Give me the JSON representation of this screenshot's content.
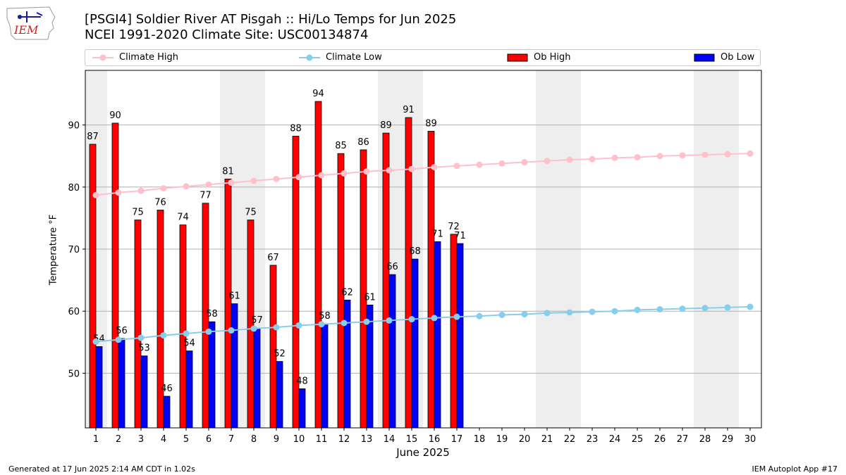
{
  "header": {
    "title_line1": "[PSGI4] Soldier River  AT Pisgah :: Hi/Lo Temps for Jun 2025",
    "title_line2": "NCEI 1991-2020 Climate Site: USC00134874"
  },
  "logo": {
    "text": "IEM"
  },
  "legend": {
    "items": [
      {
        "label": "Climate High",
        "kind": "line",
        "color": "#ffc0cb"
      },
      {
        "label": "Climate Low",
        "kind": "line",
        "color": "#87ceeb"
      },
      {
        "label": "Ob High",
        "kind": "bar",
        "color": "#ff0000"
      },
      {
        "label": "Ob Low",
        "kind": "bar",
        "color": "#0000ff"
      }
    ]
  },
  "footer": {
    "left": "Generated at 17 Jun 2025 2:14 AM CDT in 1.02s",
    "right": "IEM Autoplot App #17"
  },
  "chart_data": {
    "type": "bar",
    "xlabel": "June 2025",
    "ylabel": "Temperature $^\\circ$F",
    "ylabel_display": "Temperature °F",
    "ylim": [
      41.2,
      98.8
    ],
    "yticks": [
      50,
      60,
      70,
      80,
      90
    ],
    "grid": "horizontal",
    "legend_position": "top",
    "weekend_shading_days": [
      1,
      7,
      8,
      14,
      15,
      21,
      22,
      28,
      29
    ],
    "days": [
      1,
      2,
      3,
      4,
      5,
      6,
      7,
      8,
      9,
      10,
      11,
      12,
      13,
      14,
      15,
      16,
      17,
      18,
      19,
      20,
      21,
      22,
      23,
      24,
      25,
      26,
      27,
      28,
      29,
      30
    ],
    "ob_high": [
      86.9,
      90.3,
      74.7,
      76.3,
      73.9,
      77.4,
      81.3,
      74.7,
      67.4,
      88.2,
      93.8,
      85.4,
      86.0,
      88.7,
      91.2,
      89.0,
      72.4
    ],
    "ob_high_labels": [
      "87",
      "90",
      "75",
      "76",
      "74",
      "77",
      "81",
      "75",
      "67",
      "88",
      "94",
      "85",
      "86",
      "89",
      "91",
      "89",
      "72"
    ],
    "ob_low": [
      54.3,
      55.6,
      52.8,
      46.3,
      53.6,
      58.3,
      61.2,
      57.3,
      51.9,
      47.5,
      58.0,
      61.8,
      61.0,
      65.9,
      68.4,
      71.2,
      70.9
    ],
    "ob_low_labels": [
      "54",
      "56",
      "53",
      "46",
      "54",
      "58",
      "61",
      "57",
      "52",
      "48",
      "58",
      "62",
      "61",
      "66",
      "68",
      "71",
      "71"
    ],
    "climate_high": [
      78.7,
      79.1,
      79.4,
      79.8,
      80.1,
      80.4,
      80.7,
      81.0,
      81.3,
      81.6,
      81.9,
      82.2,
      82.5,
      82.7,
      82.9,
      83.2,
      83.4,
      83.6,
      83.8,
      84.0,
      84.2,
      84.4,
      84.5,
      84.7,
      84.8,
      85.0,
      85.1,
      85.2,
      85.3,
      85.4
    ],
    "climate_low": [
      55.1,
      55.4,
      55.7,
      56.1,
      56.4,
      56.7,
      56.9,
      57.2,
      57.4,
      57.7,
      57.9,
      58.1,
      58.3,
      58.5,
      58.7,
      58.9,
      59.1,
      59.2,
      59.4,
      59.5,
      59.7,
      59.8,
      59.9,
      60.0,
      60.2,
      60.3,
      60.4,
      60.5,
      60.6,
      60.7
    ],
    "colors": {
      "ob_high": "#ff0000",
      "ob_low": "#0000ff",
      "climate_high": "#ffc0cb",
      "climate_low": "#87ceeb",
      "weekend": "#eeeeee",
      "grid": "#b0b0b0"
    }
  }
}
